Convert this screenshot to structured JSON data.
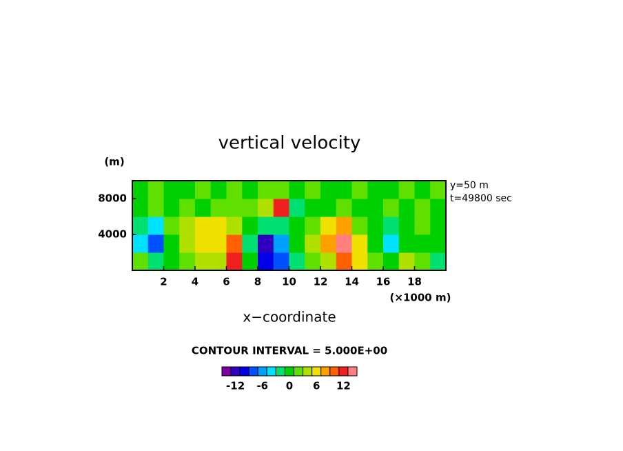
{
  "chart_data": {
    "type": "contour",
    "title": "vertical velocity",
    "y_unit": "(m)",
    "x_unit": "(×1000 m)",
    "x_label": "x−coordinate",
    "annotations": [
      "y=50 m",
      "t=49800 sec"
    ],
    "contour_note": "CONTOUR INTERVAL = 5.000E+00",
    "xlim": [
      0,
      20
    ],
    "xticks": [
      2,
      4,
      6,
      8,
      10,
      12,
      14,
      16,
      18
    ],
    "ylim": [
      0,
      10000
    ],
    "yticks": [
      4000,
      8000
    ],
    "z": [
      [
        1,
        -3,
        0,
        2,
        3,
        4,
        12,
        0,
        -10,
        -8,
        -2,
        2,
        3,
        10,
        6,
        1,
        0,
        4,
        1,
        -3
      ],
      [
        -4,
        -9,
        0,
        4,
        6,
        5,
        9,
        -2,
        -12,
        -6,
        0,
        3,
        8,
        13,
        5,
        -1,
        -4,
        -1,
        -1,
        -1
      ],
      [
        -2,
        -4,
        1,
        3,
        6,
        5,
        3,
        0,
        -2,
        -3,
        0,
        2,
        6,
        7,
        2,
        -1,
        -2,
        0,
        1,
        0
      ],
      [
        0,
        1,
        0,
        1,
        0,
        1,
        1,
        2,
        4,
        12,
        -3,
        0,
        0,
        1,
        0,
        0,
        1,
        0,
        1,
        0
      ],
      [
        0,
        1,
        0,
        0,
        1,
        0,
        1,
        0,
        1,
        2,
        0,
        1,
        0,
        0,
        1,
        0,
        0,
        1,
        0,
        1
      ]
    ],
    "clim": [
      -15,
      15
    ],
    "colorbar_ticks": [
      -12,
      -6,
      0,
      6,
      12
    ],
    "colors": [
      "#7a00a0",
      "#3000c0",
      "#0000e8",
      "#0050ff",
      "#00a0ff",
      "#00e0ff",
      "#00e070",
      "#00d000",
      "#60e000",
      "#b0e000",
      "#f0e000",
      "#ffa000",
      "#ff6000",
      "#f02020",
      "#ff8080"
    ]
  }
}
